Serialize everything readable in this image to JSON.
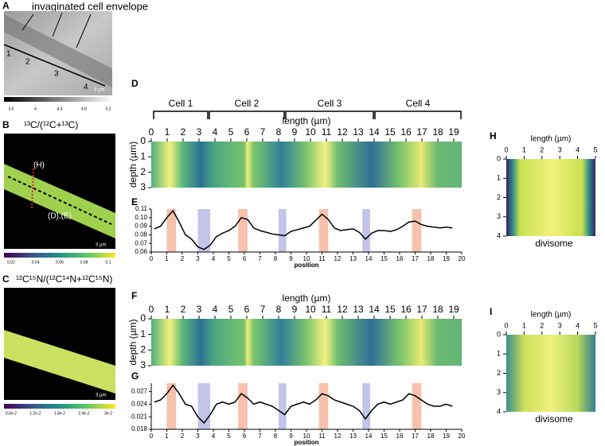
{
  "panels": {
    "A": {
      "label": "A",
      "annotation": "invaginated cell envelope",
      "cell_numbers": [
        "1",
        "2",
        "3",
        "4"
      ],
      "scale_bar": "3 µm",
      "colorbar_ticks": [
        "3.6",
        "4",
        "4.4",
        "4.8",
        "5.2"
      ]
    },
    "B": {
      "label": "B",
      "title": "¹³C/(¹²C+¹³C)",
      "markers": [
        "(H)",
        "(D),(E)"
      ],
      "scale_bar": "3 µm",
      "colorbar_ticks": [
        "0.02",
        "0.04",
        "0.06",
        "0.08",
        "0.1"
      ]
    },
    "C": {
      "label": "C",
      "title": "¹²C¹⁵N/(¹²C¹⁴N+¹²C¹⁵N)",
      "scale_bar": "3 µm",
      "colorbar_ticks": [
        "0.6e-2",
        "1.2e-2",
        "1.8e-2",
        "2.4e-2",
        "3e-2"
      ]
    }
  },
  "heatmaps": [
    {
      "label": "D",
      "cells": [
        "Cell 1",
        "Cell 2",
        "Cell 3",
        "Cell 4"
      ],
      "x_label": "length (µm)",
      "y_label": "depth (µm)",
      "xlim": [
        0,
        19.5
      ],
      "ylim": [
        0,
        3
      ],
      "xticks": [
        0,
        1,
        2,
        3,
        4,
        5,
        6,
        7,
        8,
        9,
        10,
        11,
        12,
        13,
        14,
        15,
        16,
        17,
        18,
        19
      ],
      "yticks": [
        0,
        1,
        2,
        3
      ]
    },
    {
      "label": "F",
      "x_label": "length (µm)",
      "y_label": "depth (µm)",
      "xlim": [
        0,
        19.5
      ],
      "ylim": [
        0,
        3
      ],
      "xticks": [
        0,
        1,
        2,
        3,
        4,
        5,
        6,
        7,
        8,
        9,
        10,
        11,
        12,
        13,
        14,
        15,
        16,
        17,
        18,
        19
      ],
      "yticks": [
        0,
        1,
        2,
        3
      ]
    },
    {
      "label": "H",
      "x_label": "length (µm)",
      "caption": "divisome",
      "xlim": [
        0,
        5
      ],
      "ylim": [
        0,
        4
      ],
      "xticks": [
        0,
        1,
        2,
        3,
        4,
        5
      ],
      "yticks": [
        0,
        1,
        2,
        3,
        4
      ]
    },
    {
      "label": "I",
      "x_label": "length (µm)",
      "caption": "divisome",
      "xlim": [
        0,
        5
      ],
      "ylim": [
        0,
        4
      ],
      "xticks": [
        0,
        1,
        2,
        3,
        4,
        5
      ],
      "yticks": [
        0,
        1,
        2,
        3,
        4
      ]
    }
  ],
  "chart_data": [
    {
      "type": "line",
      "label": "E",
      "x_label": "position",
      "color": "#000000",
      "xlim": [
        0,
        20
      ],
      "ylim": [
        0.06,
        0.11
      ],
      "xticks": [
        0,
        1,
        2,
        3,
        4,
        5,
        6,
        7,
        8,
        9,
        10,
        11,
        12,
        13,
        14,
        15,
        16,
        17,
        18,
        19,
        20
      ],
      "yticks": [
        0.06,
        0.07,
        0.08,
        0.09,
        {
          "value": 0.1,
          "label": "0.10"
        },
        0.11
      ],
      "highlights": [
        {
          "range": [
            1,
            1.6
          ],
          "color": "#f6c2ad"
        },
        {
          "range": [
            3,
            3.8
          ],
          "color": "#c4c4ea"
        },
        {
          "range": [
            5.6,
            6.2
          ],
          "color": "#f6c2ad"
        },
        {
          "range": [
            8.2,
            8.7
          ],
          "color": "#c4c4ea"
        },
        {
          "range": [
            10.8,
            11.4
          ],
          "color": "#f6c2ad"
        },
        {
          "range": [
            13.6,
            14.1
          ],
          "color": "#c4c4ea"
        },
        {
          "range": [
            16.8,
            17.4
          ],
          "color": "#f6c2ad"
        }
      ],
      "x": [
        0.2,
        0.6,
        1,
        1.4,
        1.8,
        2.2,
        2.6,
        3,
        3.4,
        3.8,
        4.2,
        4.6,
        5,
        5.4,
        5.8,
        6.2,
        6.6,
        7,
        7.4,
        7.8,
        8.2,
        8.6,
        9,
        9.4,
        9.8,
        10.2,
        10.6,
        11,
        11.4,
        11.8,
        12.2,
        12.6,
        13,
        13.4,
        13.8,
        14.2,
        14.6,
        15,
        15.4,
        15.8,
        16.2,
        16.6,
        17,
        17.4,
        17.8,
        18.2,
        18.6,
        19,
        19.4
      ],
      "values": [
        0.087,
        0.09,
        0.1,
        0.108,
        0.095,
        0.08,
        0.075,
        0.066,
        0.063,
        0.068,
        0.078,
        0.082,
        0.085,
        0.09,
        0.1,
        0.098,
        0.088,
        0.085,
        0.083,
        0.081,
        0.08,
        0.079,
        0.084,
        0.086,
        0.088,
        0.09,
        0.097,
        0.104,
        0.098,
        0.088,
        0.085,
        0.086,
        0.087,
        0.083,
        0.075,
        0.082,
        0.085,
        0.085,
        0.084,
        0.086,
        0.09,
        0.095,
        0.096,
        0.092,
        0.09,
        0.089,
        0.088,
        0.089,
        0.088
      ]
    },
    {
      "type": "line",
      "label": "G",
      "x_label": "position",
      "color": "#000000",
      "xlim": [
        0,
        20
      ],
      "ylim": [
        0.018,
        0.029
      ],
      "xticks": [
        0,
        1,
        2,
        3,
        4,
        5,
        6,
        7,
        8,
        9,
        10,
        11,
        12,
        13,
        14,
        15,
        16,
        17,
        18,
        19,
        20
      ],
      "yticks": [
        0.018,
        0.021,
        0.024,
        0.027
      ],
      "highlights": [
        {
          "range": [
            1,
            1.6
          ],
          "color": "#f6c2ad"
        },
        {
          "range": [
            3,
            3.8
          ],
          "color": "#c4c4ea"
        },
        {
          "range": [
            5.6,
            6.2
          ],
          "color": "#f6c2ad"
        },
        {
          "range": [
            8.2,
            8.7
          ],
          "color": "#c4c4ea"
        },
        {
          "range": [
            10.8,
            11.4
          ],
          "color": "#f6c2ad"
        },
        {
          "range": [
            13.6,
            14.1
          ],
          "color": "#c4c4ea"
        },
        {
          "range": [
            16.8,
            17.4
          ],
          "color": "#f6c2ad"
        }
      ],
      "x": [
        0.2,
        0.6,
        1,
        1.4,
        1.8,
        2.2,
        2.6,
        3,
        3.4,
        3.8,
        4.2,
        4.6,
        5,
        5.4,
        5.8,
        6.2,
        6.6,
        7,
        7.4,
        7.8,
        8.2,
        8.6,
        9,
        9.4,
        9.8,
        10.2,
        10.6,
        11,
        11.4,
        11.8,
        12.2,
        12.6,
        13,
        13.4,
        13.8,
        14.2,
        14.6,
        15,
        15.4,
        15.8,
        16.2,
        16.6,
        17,
        17.4,
        17.8,
        18.2,
        18.6,
        19,
        19.4
      ],
      "values": [
        0.0245,
        0.025,
        0.0265,
        0.0285,
        0.0265,
        0.024,
        0.0235,
        0.021,
        0.0195,
        0.0215,
        0.024,
        0.0245,
        0.024,
        0.0245,
        0.0265,
        0.0255,
        0.024,
        0.0245,
        0.024,
        0.0235,
        0.0225,
        0.0215,
        0.0235,
        0.024,
        0.0245,
        0.024,
        0.025,
        0.0265,
        0.026,
        0.025,
        0.0245,
        0.024,
        0.0235,
        0.0225,
        0.0205,
        0.0225,
        0.024,
        0.0245,
        0.024,
        0.0245,
        0.025,
        0.0265,
        0.026,
        0.025,
        0.024,
        0.0235,
        0.0235,
        0.024,
        0.0235
      ]
    }
  ]
}
